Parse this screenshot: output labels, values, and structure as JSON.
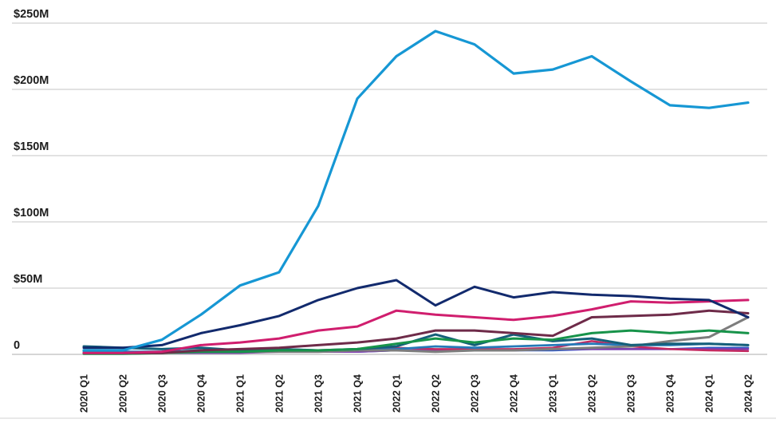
{
  "chart_data": {
    "type": "line",
    "title": "",
    "xlabel": "",
    "ylabel": "",
    "legend": "none",
    "grid": "horizontal",
    "ylim": [
      0,
      250
    ],
    "categories": [
      "2020 Q1",
      "2020 Q2",
      "2020 Q3",
      "2020 Q4",
      "2021 Q1",
      "2021 Q2",
      "2021 Q3",
      "2021 Q4",
      "2022 Q1",
      "2022 Q2",
      "2022 Q3",
      "2022 Q4",
      "2023 Q1",
      "2023 Q2",
      "2023 Q3",
      "2023 Q4",
      "2024 Q1",
      "2024 Q2"
    ],
    "y_axis": {
      "tick_labels": [
        "$250M",
        "$200M",
        "$150M",
        "$100M",
        "$50M",
        "0"
      ],
      "tick_values": [
        250,
        200,
        150,
        100,
        50,
        0
      ],
      "unit": "USD millions"
    },
    "series": [
      {
        "name": "royalblue-line",
        "color": "#2f5bc4",
        "width": 2.5,
        "values": [
          1,
          1,
          1,
          1,
          2,
          2,
          2,
          2,
          3,
          3,
          3,
          3,
          3,
          4,
          4,
          4,
          5,
          5
        ]
      },
      {
        "name": "purple-line",
        "color": "#7e3cae",
        "width": 2.5,
        "values": [
          0.5,
          0.5,
          1,
          1,
          1,
          2,
          2,
          2,
          3,
          3,
          3,
          3,
          4,
          4,
          4,
          4,
          4,
          4
        ]
      },
      {
        "name": "red-line",
        "color": "#c42a60",
        "width": 2.5,
        "values": [
          0.5,
          0.5,
          1,
          2,
          2,
          2,
          2,
          3,
          5,
          4,
          4,
          4,
          5,
          10,
          6,
          4,
          3,
          2.5
        ]
      },
      {
        "name": "steelblue-line",
        "color": "#2579b8",
        "width": 2.8,
        "values": [
          2,
          2,
          2,
          3,
          3,
          4,
          3,
          3,
          4,
          6,
          5,
          6,
          7,
          8,
          7,
          7,
          8,
          7
        ]
      },
      {
        "name": "gray-line",
        "color": "#7d7d7d",
        "width": 3,
        "values": [
          1,
          1,
          1,
          2,
          2,
          2,
          2,
          3,
          3,
          2,
          3,
          3,
          4,
          5,
          6,
          10,
          13,
          28
        ]
      },
      {
        "name": "teal-line",
        "color": "#145f79",
        "width": 3,
        "values": [
          6,
          5,
          4,
          5,
          3,
          4,
          3,
          4,
          6,
          15,
          7,
          15,
          10,
          12,
          7,
          8,
          8,
          7
        ]
      },
      {
        "name": "green-line",
        "color": "#17934a",
        "width": 3,
        "values": [
          0.5,
          0.5,
          1,
          2,
          2,
          3,
          3,
          4,
          8,
          12,
          9,
          12,
          11,
          16,
          18,
          16,
          18,
          16
        ]
      },
      {
        "name": "maroon-line",
        "color": "#6e2b49",
        "width": 3,
        "values": [
          1,
          1,
          1,
          3,
          4,
          5,
          7,
          9,
          12,
          18,
          18,
          16,
          14,
          28,
          29,
          30,
          33,
          31
        ]
      },
      {
        "name": "pink-line",
        "color": "#d01e6e",
        "width": 3,
        "values": [
          1,
          1,
          2,
          7,
          9,
          12,
          18,
          21,
          33,
          30,
          28,
          26,
          29,
          34,
          40,
          39,
          40,
          41
        ]
      },
      {
        "name": "navy-line",
        "color": "#122a6d",
        "width": 3,
        "values": [
          5,
          5,
          7,
          16,
          22,
          29,
          41,
          50,
          56,
          37,
          51,
          43,
          47,
          45,
          44,
          42,
          41,
          28
        ]
      },
      {
        "name": "cyan-line",
        "color": "#1697d4",
        "width": 3.2,
        "values": [
          3,
          3,
          11,
          30,
          52,
          62,
          112,
          193,
          225,
          244,
          234,
          212,
          215,
          225,
          206,
          188,
          186,
          190
        ]
      }
    ]
  },
  "colors": {
    "background": "#ffffff",
    "gridline": "#d9d9d9",
    "zero_line": "#c9c9c9",
    "bottom_border": "#e2e2e2",
    "label": "#1d1d1d"
  }
}
